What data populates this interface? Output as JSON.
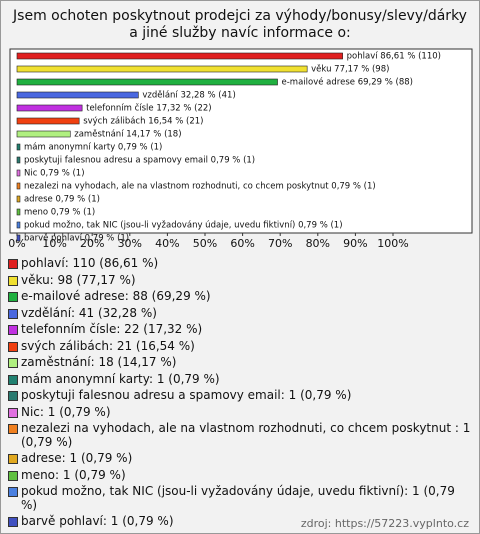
{
  "chart_data": {
    "type": "bar",
    "orientation": "horizontal",
    "title": "Jsem ochoten poskytnout prodejci za výhody/bonusy/slevy/dárky a jiné služby navíc informace o:",
    "categories": [
      "pohlaví",
      "věku",
      "e-mailové adrese",
      "vzdělání",
      "telefonním čísle",
      "svých zálibách",
      "zaměstnání",
      "mám anonymní karty",
      "poskytuji falesnou adresu a spamovy email",
      "Nic",
      "nezalezi na vyhodach, ale na vlastnom rozhodnuti, co chcem poskytnut",
      "adrese",
      "meno",
      "pokud možno, tak NIC (jsou-li vyžadovány údaje, uvedu fiktivní)",
      "barvě pohlaví"
    ],
    "values": [
      86.61,
      77.17,
      69.29,
      32.28,
      17.32,
      16.54,
      14.17,
      0.79,
      0.79,
      0.79,
      0.79,
      0.79,
      0.79,
      0.79,
      0.79
    ],
    "value_labels": [
      "pohlaví 86,61 % (110)",
      "věku 77,17 % (98)",
      "e-mailové adrese 69,29 % (88)",
      "vzdělání 32,28 % (41)",
      "telefonním čísle 17,32 % (22)",
      "svých zálibách 16,54 % (21)",
      "zaměstnání 14,17 % (18)",
      "mám anonymní karty 0,79 % (1)",
      "poskytuji falesnou adresu a spamovy email 0,79 % (1)",
      "Nic 0,79 % (1)",
      "nezalezi na vyhodach, ale na vlastnom rozhodnuti, co chcem poskytnut  0,79 % (1)",
      "adrese 0,79 % (1)",
      "meno 0,79 % (1)",
      "pokud možno, tak NIC (jsou-li vyžadovány údaje, uvedu fiktivní) 0,79 % (1)",
      "barvě pohlaví 0,79 % (1)"
    ],
    "legend": [
      "pohlaví: 110 (86,61 %)",
      "věku: 98 (77,17 %)",
      "e-mailové adrese: 88 (69,29 %)",
      "vzdělání: 41 (32,28 %)",
      "telefonním čísle: 22 (17,32 %)",
      "svých zálibách: 21 (16,54 %)",
      "zaměstnání: 18 (14,17 %)",
      "mám anonymní karty: 1 (0,79 %)",
      "poskytuji falesnou adresu a spamovy email: 1 (0,79 %)",
      "Nic: 1 (0,79 %)",
      "nezalezi na vyhodach, ale na vlastnom rozhodnuti, co chcem poskytnut : 1 (0,79 %)",
      "adrese: 1 (0,79 %)",
      "meno: 1 (0,79 %)",
      "pokud možno, tak NIC (jsou-li vyžadovány údaje, uvedu fiktivní): 1 (0,79 %)",
      "barvě pohlaví: 1 (0,79 %)"
    ],
    "colors": [
      "#e02020",
      "#f0e030",
      "#20b040",
      "#4a68e0",
      "#c030e0",
      "#f04010",
      "#b0f080",
      "#208070",
      "#2a7a70",
      "#e070e0",
      "#f08020",
      "#e0a820",
      "#60c040",
      "#4a80e0",
      "#4050c0"
    ],
    "xlim": [
      0,
      100
    ],
    "xticks": [
      {
        "value": 0,
        "label": "0%"
      },
      {
        "value": 10,
        "label": "10%"
      },
      {
        "value": 20,
        "label": "20%"
      },
      {
        "value": 30,
        "label": "30%"
      },
      {
        "value": 40,
        "label": "40%"
      },
      {
        "value": 50,
        "label": "50%"
      },
      {
        "value": 60,
        "label": "60%"
      },
      {
        "value": 70,
        "label": "70%"
      },
      {
        "value": 80,
        "label": "80%"
      },
      {
        "value": 90,
        "label": "90%"
      },
      {
        "value": 100,
        "label": "100%"
      }
    ],
    "source": "zdroj: https://57223.vyplnto.cz"
  }
}
